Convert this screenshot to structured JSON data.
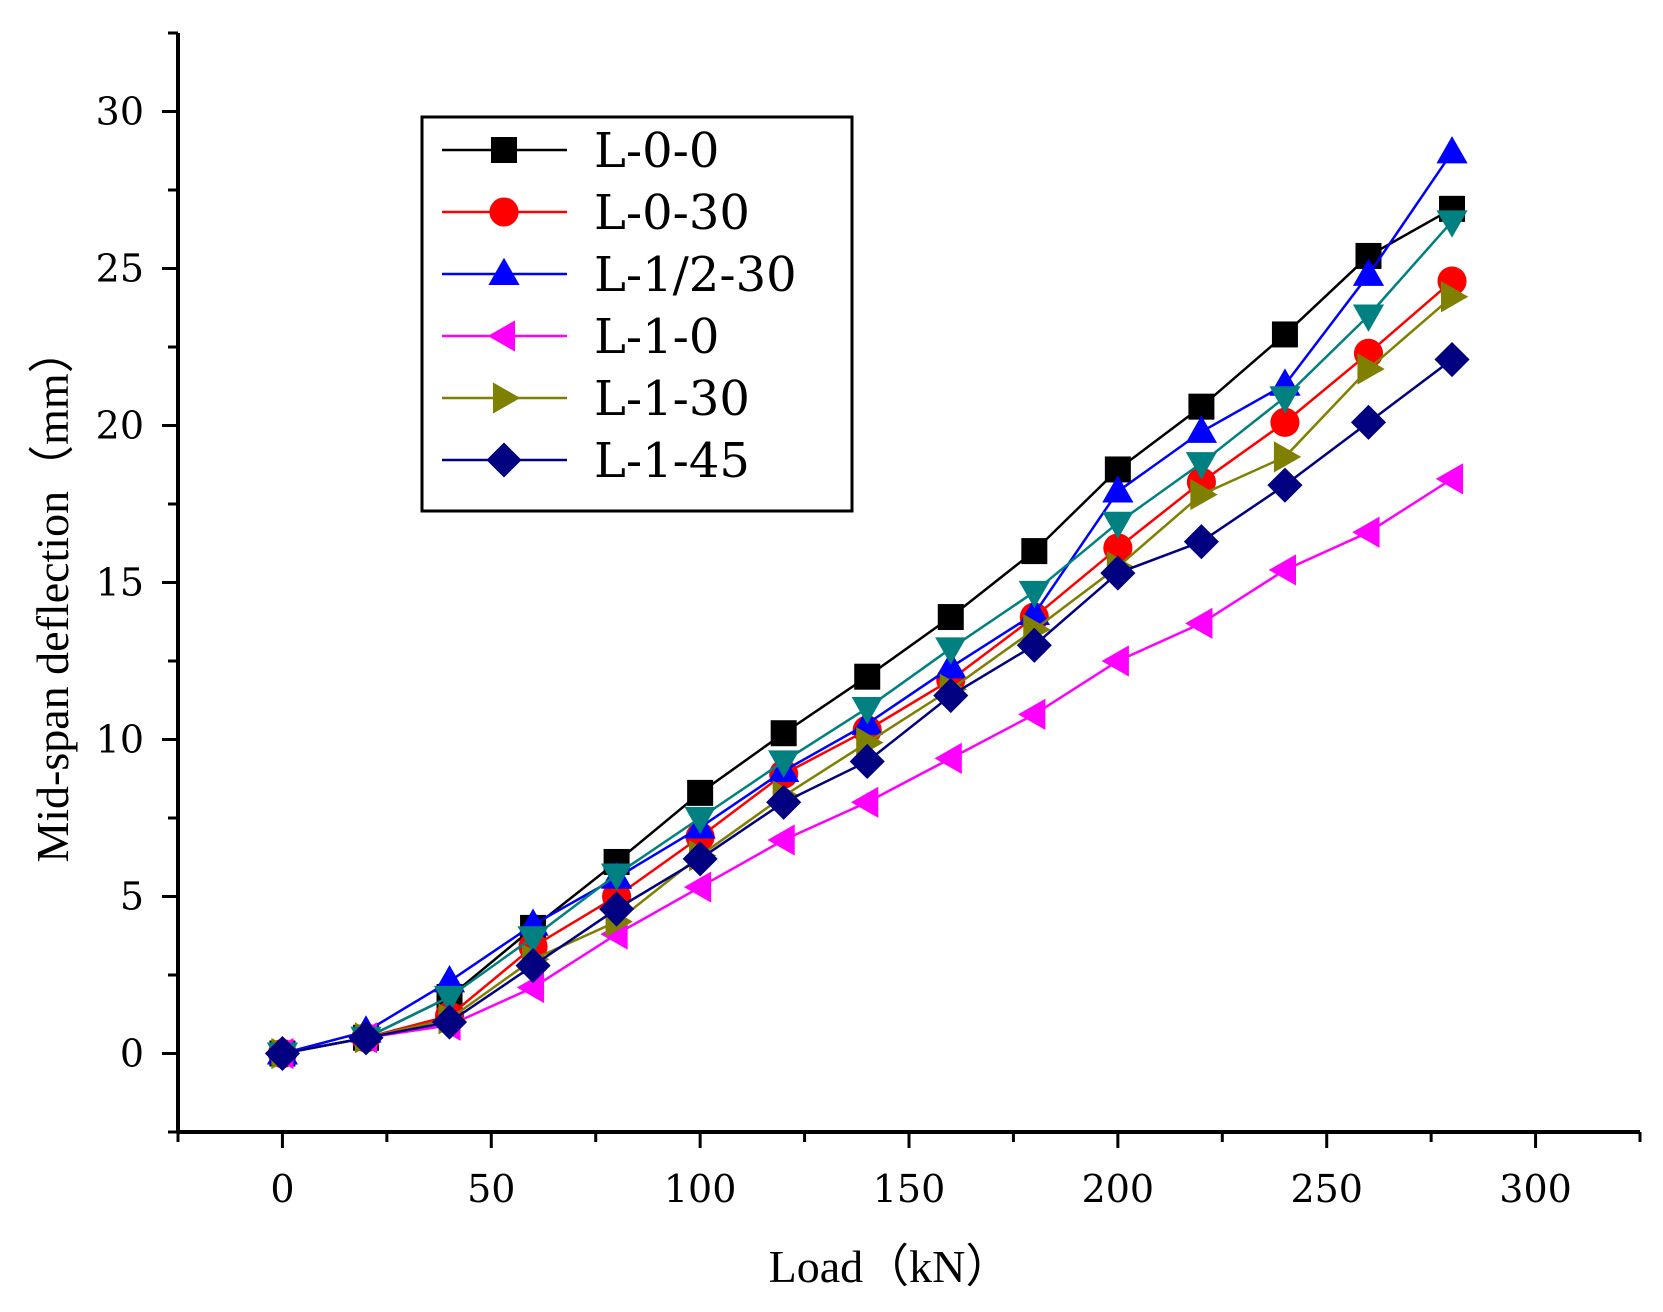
{
  "chart_data": {
    "type": "line",
    "title": "",
    "xlabel": "Load（kN）",
    "ylabel": "Mid-span deflection（mm）",
    "xlim": [
      -25,
      325
    ],
    "ylim": [
      -2.5,
      32.5
    ],
    "xticks": [
      0,
      50,
      100,
      150,
      200,
      250,
      300
    ],
    "yticks": [
      0,
      5,
      10,
      15,
      20,
      25,
      30
    ],
    "x": [
      0,
      20,
      40,
      60,
      80,
      100,
      120,
      140,
      160,
      180,
      200,
      220,
      240,
      260,
      280
    ],
    "legend_position": "top-left",
    "series": [
      {
        "name": "L-0-0",
        "color": "#000000",
        "marker": "square",
        "values": [
          0,
          0.5,
          1.8,
          4.0,
          6.1,
          8.3,
          10.2,
          12.0,
          13.9,
          16.0,
          18.6,
          20.6,
          22.9,
          25.4,
          26.9
        ]
      },
      {
        "name": "L-0-30",
        "color": "#ff0000",
        "marker": "circle",
        "values": [
          0,
          0.5,
          1.2,
          3.4,
          5.0,
          6.9,
          8.9,
          10.3,
          11.9,
          13.9,
          16.1,
          18.2,
          20.1,
          22.3,
          24.6
        ]
      },
      {
        "name": "L-1/2-30",
        "color": "#0000ff",
        "marker": "triangle-up",
        "values": [
          0,
          0.7,
          2.3,
          4.1,
          5.6,
          7.2,
          9.0,
          10.5,
          12.3,
          14.0,
          17.9,
          19.8,
          21.3,
          24.8,
          28.7
        ]
      },
      {
        "name": "L-1-0",
        "color": "#ff00ff",
        "marker": "triangle-left",
        "values": [
          0,
          0.5,
          0.9,
          2.1,
          3.8,
          5.3,
          6.8,
          8.0,
          9.4,
          10.8,
          12.5,
          13.7,
          15.4,
          16.6,
          18.3
        ]
      },
      {
        "name": "L-1-30",
        "color": "#808000",
        "marker": "triangle-right",
        "values": [
          0,
          0.5,
          1.1,
          3.0,
          4.2,
          6.3,
          8.2,
          9.9,
          11.6,
          13.5,
          15.5,
          17.8,
          19.0,
          21.8,
          24.1
        ]
      },
      {
        "name": "",
        "color": "#008080",
        "marker": "triangle-down",
        "values": [
          0,
          0.5,
          1.8,
          3.7,
          5.7,
          7.5,
          9.3,
          11.0,
          12.9,
          14.7,
          16.9,
          18.8,
          20.9,
          23.5,
          26.5
        ]
      },
      {
        "name": "L-1-45",
        "color": "#000080",
        "marker": "diamond",
        "values": [
          0,
          0.5,
          1.0,
          2.8,
          4.6,
          6.2,
          8.0,
          9.3,
          11.4,
          13.0,
          15.3,
          16.3,
          18.1,
          20.1,
          22.1
        ]
      }
    ]
  }
}
